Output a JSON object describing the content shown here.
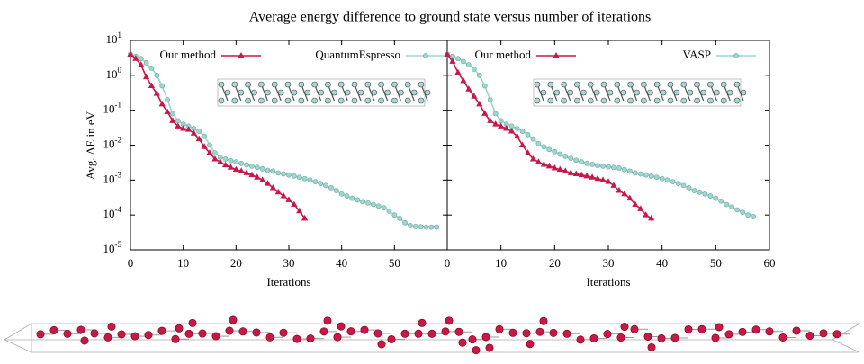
{
  "chart_data": [
    {
      "type": "line",
      "title": "Average energy difference to ground state versus number of iterations",
      "ylabel": "Avg. ΔE in eV",
      "xlabel": "Iterations",
      "log_y": true,
      "xlim": [
        0,
        60
      ],
      "xticks": [
        0,
        10,
        20,
        30,
        40,
        50
      ],
      "ylim": [
        1e-05,
        10
      ],
      "yticks": [
        {
          "value": 1e-05,
          "label": "10",
          "exponent": "-5"
        },
        {
          "value": 0.0001,
          "label": "10",
          "exponent": "-4"
        },
        {
          "value": 0.001,
          "label": "10",
          "exponent": "-3"
        },
        {
          "value": 0.01,
          "label": "10",
          "exponent": "-2"
        },
        {
          "value": 0.1,
          "label": "10",
          "exponent": "-1"
        },
        {
          "value": 1,
          "label": "10",
          "exponent": "0"
        },
        {
          "value": 10,
          "label": "10",
          "exponent": "1"
        }
      ],
      "series": [
        {
          "name": "Our method",
          "color": "#c8174a",
          "marker": "triangle",
          "x": [
            0,
            1,
            2,
            3,
            4,
            5,
            6,
            7,
            8,
            9,
            10,
            11,
            12,
            13,
            14,
            15,
            16,
            17,
            18,
            19,
            20,
            21,
            22,
            23,
            24,
            25,
            26,
            27,
            28,
            29,
            30,
            31,
            32,
            33
          ],
          "values": [
            4,
            3,
            2,
            0.9,
            0.5,
            0.3,
            0.15,
            0.09,
            0.05,
            0.035,
            0.03,
            0.028,
            0.022,
            0.015,
            0.009,
            0.006,
            0.004,
            0.0033,
            0.0027,
            0.0023,
            0.002,
            0.0018,
            0.0016,
            0.0014,
            0.0012,
            0.001,
            0.0008,
            0.0006,
            0.00045,
            0.00035,
            0.00027,
            0.0002,
            0.00013,
            8e-05
          ]
        },
        {
          "name": "QuantumEspresso",
          "color": "#9ed6cf",
          "marker": "circle",
          "x": [
            0,
            1,
            2,
            3,
            4,
            5,
            6,
            7,
            8,
            9,
            10,
            11,
            12,
            13,
            14,
            15,
            16,
            17,
            18,
            19,
            20,
            21,
            22,
            23,
            24,
            25,
            26,
            27,
            28,
            29,
            30,
            31,
            32,
            33,
            34,
            35,
            36,
            37,
            38,
            39,
            40,
            41,
            42,
            43,
            44,
            45,
            46,
            47,
            48,
            49,
            50,
            51,
            52,
            53,
            54,
            55,
            56,
            57,
            58
          ],
          "values": [
            4,
            3.5,
            3,
            2.3,
            1.6,
            1,
            0.5,
            0.2,
            0.08,
            0.05,
            0.04,
            0.035,
            0.03,
            0.025,
            0.018,
            0.01,
            0.006,
            0.0045,
            0.004,
            0.0036,
            0.0033,
            0.003,
            0.0027,
            0.0025,
            0.0023,
            0.0021,
            0.0019,
            0.0018,
            0.0016,
            0.0015,
            0.0014,
            0.0013,
            0.0012,
            0.0011,
            0.001,
            0.0009,
            0.0008,
            0.0007,
            0.0006,
            0.0005,
            0.0004,
            0.00035,
            0.0003,
            0.00027,
            0.00024,
            0.00022,
            0.0002,
            0.00018,
            0.00016,
            0.00013,
            0.0001,
            8e-05,
            6e-05,
            5e-05,
            4.7e-05,
            4.6e-05,
            4.5e-05,
            4.5e-05,
            4.5e-05
          ]
        }
      ]
    },
    {
      "type": "line",
      "xlabel": "Iterations",
      "log_y": true,
      "xlim": [
        0,
        60
      ],
      "xticks": [
        0,
        10,
        20,
        30,
        40,
        50,
        60
      ],
      "ylim": [
        1e-05,
        10
      ],
      "series": [
        {
          "name": "Our method",
          "color": "#c8174a",
          "marker": "triangle",
          "x": [
            0,
            1,
            2,
            3,
            4,
            5,
            6,
            7,
            8,
            9,
            10,
            11,
            12,
            13,
            14,
            15,
            16,
            17,
            18,
            19,
            20,
            21,
            22,
            23,
            24,
            25,
            26,
            27,
            28,
            29,
            30,
            31,
            32,
            33,
            34,
            35,
            36,
            37,
            38
          ],
          "values": [
            4,
            2.5,
            1.2,
            0.7,
            0.4,
            0.25,
            0.15,
            0.08,
            0.05,
            0.04,
            0.035,
            0.03,
            0.025,
            0.018,
            0.01,
            0.006,
            0.004,
            0.0033,
            0.0028,
            0.0025,
            0.0022,
            0.002,
            0.0018,
            0.0016,
            0.0015,
            0.0014,
            0.0013,
            0.0012,
            0.0011,
            0.001,
            0.0009,
            0.0007,
            0.0005,
            0.0004,
            0.0003,
            0.0002,
            0.00015,
            0.0001,
            8e-05
          ]
        },
        {
          "name": "VASP",
          "color": "#9ed6cf",
          "marker": "circle",
          "x": [
            0,
            1,
            2,
            3,
            4,
            5,
            6,
            7,
            8,
            9,
            10,
            11,
            12,
            13,
            14,
            15,
            16,
            17,
            18,
            19,
            20,
            21,
            22,
            23,
            24,
            25,
            26,
            27,
            28,
            29,
            30,
            31,
            32,
            33,
            34,
            35,
            36,
            37,
            38,
            39,
            40,
            41,
            42,
            43,
            44,
            45,
            46,
            47,
            48,
            49,
            50,
            51,
            52,
            53,
            54,
            55,
            56,
            57
          ],
          "values": [
            4,
            3.5,
            3,
            2.5,
            2,
            1.5,
            1,
            0.5,
            0.2,
            0.08,
            0.05,
            0.04,
            0.035,
            0.03,
            0.025,
            0.02,
            0.015,
            0.011,
            0.009,
            0.0075,
            0.0065,
            0.0055,
            0.0048,
            0.0042,
            0.0037,
            0.0033,
            0.003,
            0.0028,
            0.0026,
            0.0025,
            0.0024,
            0.0023,
            0.0022,
            0.002,
            0.0018,
            0.0016,
            0.0015,
            0.0014,
            0.0013,
            0.0012,
            0.0011,
            0.001,
            0.0009,
            0.0008,
            0.0007,
            0.0006,
            0.0005,
            0.00045,
            0.0004,
            0.00035,
            0.0003,
            0.00025,
            0.0002,
            0.00017,
            0.00014,
            0.00012,
            0.0001,
            9e-05
          ]
        }
      ]
    }
  ]
}
